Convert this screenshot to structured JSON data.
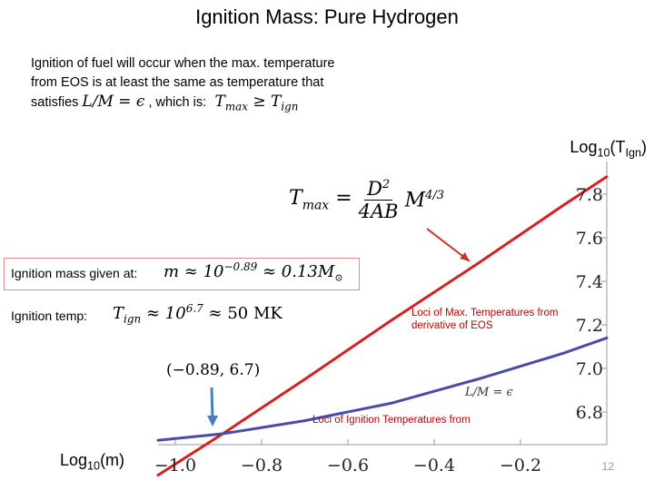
{
  "slide": {
    "title": "Ignition Mass: Pure Hydrogen",
    "intro_line1": "Ignition of fuel will occur when the max. temperature",
    "intro_line2": "from EOS is at least the same as temperature that",
    "intro_line3_a": "satisfies",
    "intro_line3_b": ", which is:",
    "mass_label": "Ignition mass given at:",
    "temp_label": "Ignition temp:",
    "slide_number": "12"
  },
  "chart_data": {
    "type": "line",
    "title": "",
    "xlabel": "Log10(m)",
    "ylabel": "Log10(TIgn)",
    "xlabel_main": "Log",
    "xlabel_sub": "10",
    "xlabel_rest": "(m)",
    "ylabel_main": "Log",
    "ylabel_sub": "10",
    "ylabel_rest": "(T",
    "ylabel_sub2": "Ign",
    "ylabel_end": ")",
    "xlim": [
      -1.04,
      -0.0
    ],
    "ylim": [
      6.65,
      7.95
    ],
    "x_ticks": [
      {
        "value": -1.0,
        "label": "−1.0"
      },
      {
        "value": -0.8,
        "label": "−0.8"
      },
      {
        "value": -0.6,
        "label": "−0.6"
      },
      {
        "value": -0.4,
        "label": "−0.4"
      },
      {
        "value": -0.2,
        "label": "−0.2"
      }
    ],
    "y_ticks": [
      {
        "value": 6.8,
        "label": "6.8"
      },
      {
        "value": 7.0,
        "label": "7.0"
      },
      {
        "value": 7.2,
        "label": "7.2"
      },
      {
        "value": 7.4,
        "label": "7.4"
      },
      {
        "value": 7.6,
        "label": "7.6"
      },
      {
        "value": 7.8,
        "label": "7.8"
      }
    ],
    "series": [
      {
        "name": "Loci of Max. Temperatures from derivative of EOS",
        "color": "#d62020",
        "x": [
          -1.04,
          -0.89,
          -0.7,
          -0.5,
          -0.3,
          -0.1,
          -0.0
        ],
        "y": [
          6.51,
          6.7,
          6.95,
          7.22,
          7.48,
          7.75,
          7.88
        ]
      },
      {
        "name": "Loci of Ignition Temperatures from L/M = ε",
        "color": "#4a4aa8",
        "x": [
          -1.04,
          -0.89,
          -0.7,
          -0.5,
          -0.3,
          -0.1,
          -0.0
        ],
        "y": [
          6.67,
          6.7,
          6.76,
          6.84,
          6.95,
          7.07,
          7.14
        ]
      }
    ],
    "annotations": [
      {
        "text": "(−0.89, 6.7)",
        "x": -0.89,
        "y": 6.7
      },
      {
        "text": "Loci of Max. Temperatures from",
        "line2": "derivative of EOS"
      },
      {
        "text": "Loci of Ignition Temperatures from"
      }
    ],
    "colors": {
      "arrow_red": "#c0392b",
      "arrow_blue": "#4a7ebb",
      "axis": "#999999"
    }
  }
}
